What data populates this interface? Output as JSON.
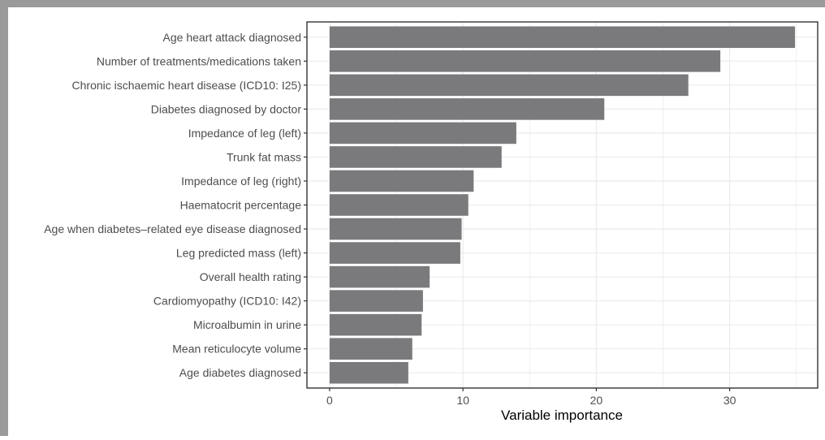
{
  "chart_data": {
    "type": "bar",
    "orientation": "horizontal",
    "categories": [
      "Age heart attack diagnosed",
      "Number of treatments/medications taken",
      "Chronic ischaemic heart disease (ICD10: I25)",
      "Diabetes diagnosed by doctor",
      "Impedance of leg (left)",
      "Trunk fat mass",
      "Impedance of leg (right)",
      "Haematocrit percentage",
      "Age when diabetes–related eye disease diagnosed",
      "Leg predicted mass (left)",
      "Overall health rating",
      "Cardiomyopathy (ICD10: I42)",
      "Microalbumin in urine",
      "Mean reticulocyte volume",
      "Age diabetes diagnosed"
    ],
    "values": [
      34.9,
      29.3,
      26.9,
      20.6,
      14.0,
      12.9,
      10.8,
      10.4,
      9.9,
      9.8,
      7.5,
      7.0,
      6.9,
      6.2,
      5.9
    ],
    "xlabel": "Variable importance",
    "ylabel": "",
    "xlim": [
      -1.7,
      36.6
    ],
    "xticks": [
      0,
      10,
      20,
      30
    ],
    "grid": true,
    "colors": {
      "bar": "#7a7a7c",
      "grid": "#ebebeb",
      "panel_border": "#333333",
      "frame": "#9a9a9a"
    }
  }
}
